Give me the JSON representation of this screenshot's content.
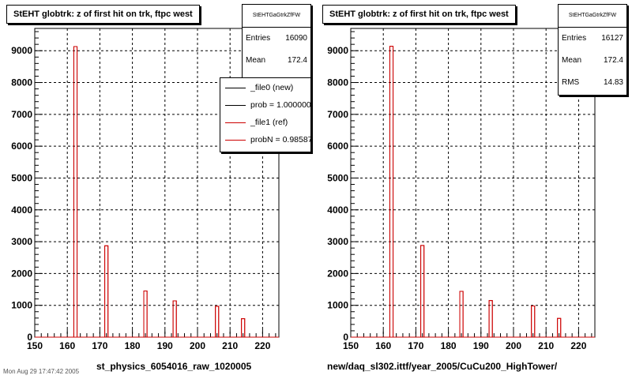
{
  "colors": {
    "histogram": "#cc0000",
    "grid": "#000000",
    "axis": "#000000"
  },
  "left_panel": {
    "title": "StEHT globtrk: z of first hit on trk, ftpc west",
    "stats": {
      "name": "StEHTGaGtrkZfFW",
      "rows": [
        {
          "label": "Entries",
          "value": "16090"
        },
        {
          "label": "Mean",
          "value": "172.4"
        }
      ]
    },
    "legend": [
      {
        "label": "_file0 (new)",
        "color": "#000000"
      },
      {
        "label": "prob = 1.000000",
        "color": "#000000"
      },
      {
        "label": "_file1 (ref)",
        "color": "#cc0000"
      },
      {
        "label": "probN = 0.985875",
        "color": "#cc0000"
      }
    ],
    "footer": "st_physics_6054016_raw_1020005",
    "corner_text": "Mon Aug 29 17:47:42 2005"
  },
  "right_panel": {
    "title": "StEHT globtrk: z of first hit on trk, ftpc west",
    "stats": {
      "name": "StEHTGaGtrkZfFW",
      "rows": [
        {
          "label": "Entries",
          "value": "16127"
        },
        {
          "label": "Mean",
          "value": "172.4"
        },
        {
          "label": "RMS",
          "value": "14.83"
        }
      ]
    },
    "footer": "new/daq_sl302.ittf/year_2005/CuCu200_HighTower/"
  },
  "chart_data": [
    {
      "type": "bar",
      "title": "StEHT globtrk: z of first hit on trk, ftpc west",
      "xlim": [
        150,
        225
      ],
      "ylim": [
        0,
        9700
      ],
      "xticks": [
        150,
        160,
        170,
        180,
        190,
        200,
        210,
        220
      ],
      "yticks": [
        0,
        1000,
        2000,
        3000,
        4000,
        5000,
        6000,
        7000,
        8000,
        9000
      ],
      "grid": true,
      "bin_width": 1,
      "bins": [
        {
          "x": 162.5,
          "value": 9130
        },
        {
          "x": 172,
          "value": 2870
        },
        {
          "x": 184,
          "value": 1450
        },
        {
          "x": 193,
          "value": 1140
        },
        {
          "x": 206,
          "value": 970
        },
        {
          "x": 214,
          "value": 580
        }
      ],
      "entries": 16090,
      "mean": 172.4
    },
    {
      "type": "bar",
      "title": "StEHT globtrk: z of first hit on trk, ftpc west",
      "xlim": [
        150,
        225
      ],
      "ylim": [
        0,
        9700
      ],
      "xticks": [
        150,
        160,
        170,
        180,
        190,
        200,
        210,
        220
      ],
      "yticks": [
        0,
        1000,
        2000,
        3000,
        4000,
        5000,
        6000,
        7000,
        8000,
        9000
      ],
      "grid": true,
      "bin_width": 1,
      "bins": [
        {
          "x": 162.5,
          "value": 9140
        },
        {
          "x": 172,
          "value": 2880
        },
        {
          "x": 184,
          "value": 1440
        },
        {
          "x": 193,
          "value": 1150
        },
        {
          "x": 206,
          "value": 980
        },
        {
          "x": 214,
          "value": 590
        }
      ],
      "entries": 16127,
      "mean": 172.4,
      "rms": 14.83
    }
  ]
}
